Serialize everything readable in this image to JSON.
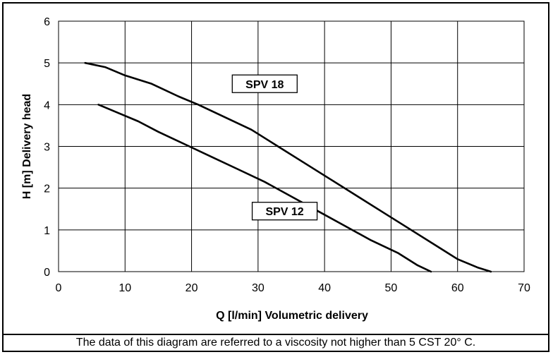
{
  "chart_data": {
    "type": "line",
    "xlabel": "Q [l/min] Volumetric delivery",
    "ylabel": "H [m] Delivery head",
    "xlim": [
      0,
      70
    ],
    "ylim": [
      0,
      6
    ],
    "x_ticks": [
      "0",
      "10",
      "20",
      "30",
      "40",
      "50",
      "60",
      "70"
    ],
    "y_ticks": [
      "0",
      "1",
      "2",
      "3",
      "4",
      "5",
      "6"
    ],
    "grid": true,
    "series": [
      {
        "name": "SPV 18",
        "x": [
          4,
          7,
          10,
          14,
          18,
          21,
          25,
          29,
          33,
          37,
          41,
          45,
          49,
          53,
          57,
          60,
          63,
          65
        ],
        "y": [
          5.0,
          4.9,
          4.7,
          4.5,
          4.2,
          4.0,
          3.7,
          3.4,
          3.0,
          2.6,
          2.2,
          1.8,
          1.4,
          1.0,
          0.6,
          0.3,
          0.1,
          0.0
        ],
        "label_at": [
          31,
          4.5
        ]
      },
      {
        "name": "SPV 12",
        "x": [
          6,
          9,
          12,
          15,
          19,
          23,
          27,
          31,
          35,
          39,
          43,
          47,
          51,
          54,
          56
        ],
        "y": [
          4.0,
          3.8,
          3.6,
          3.35,
          3.05,
          2.75,
          2.45,
          2.15,
          1.8,
          1.45,
          1.1,
          0.75,
          0.45,
          0.15,
          0.0
        ],
        "label_at": [
          34,
          1.45
        ]
      }
    ]
  },
  "footnote": "The data of this diagram are referred to a viscosity not higher than 5 CST 20° C."
}
